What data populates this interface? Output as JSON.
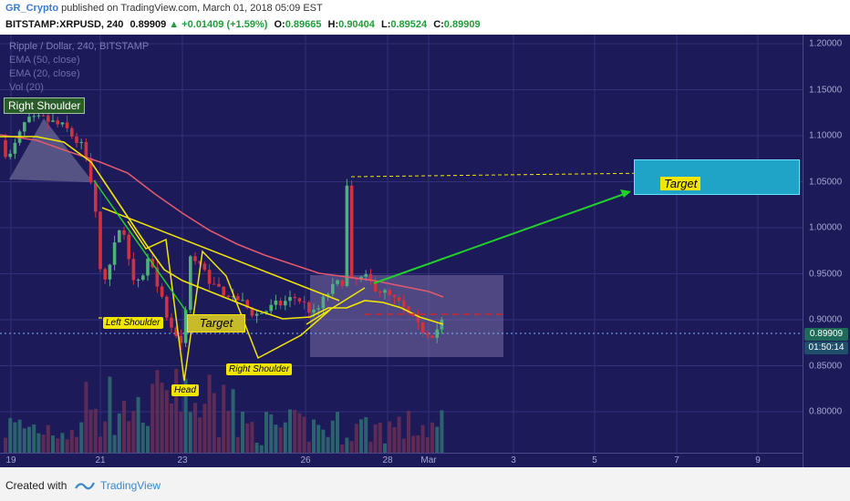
{
  "header": {
    "author": "GR_Crypto",
    "published_text": "published on TradingView.com, March 01, 2018 05:09 EST",
    "symbol": "BITSTAMP:XRPUSD, 240",
    "last": "0.89909",
    "change": "+0.01409 (+1.59%)",
    "o_label": "O:",
    "o_value": "0.89665",
    "h_label": "H:",
    "h_value": "0.90404",
    "l_label": "L:",
    "l_value": "0.89524",
    "c_label": "C:",
    "c_value": "0.89909"
  },
  "legend": {
    "title": "Ripple / Dollar, 240, BITSTAMP",
    "indicators": [
      "EMA (50, close)",
      "EMA (20, close)",
      "Vol (20)"
    ]
  },
  "y_ticks": [
    "1.20000",
    "1.15000",
    "1.10000",
    "1.05000",
    "1.00000",
    "0.95000",
    "0.90000",
    "0.85000",
    "0.80000"
  ],
  "x_ticks": [
    "19",
    "21",
    "23",
    "26",
    "28",
    "Mar",
    "3",
    "5",
    "7",
    "9"
  ],
  "price_tags": {
    "current": "0.89909",
    "countdown": "01:50:14"
  },
  "annotations": {
    "right_shoulder_top": "Right Shoulder",
    "left_shoulder": "Left Shoulder",
    "head": "Head",
    "right_shoulder": "Right Shoulder",
    "target_1": "Target",
    "target_2": "Target"
  },
  "colors": {
    "background": "#1d1a5a",
    "up_candle": "#4fb07a",
    "down_candle": "#d1323f",
    "ema50": "#e05a6d",
    "ema20": "#f2e600",
    "trendline": "#f2e600",
    "projection": "#22d02a"
  },
  "footer": {
    "created_with": "Created with",
    "brand": "TradingView"
  }
}
